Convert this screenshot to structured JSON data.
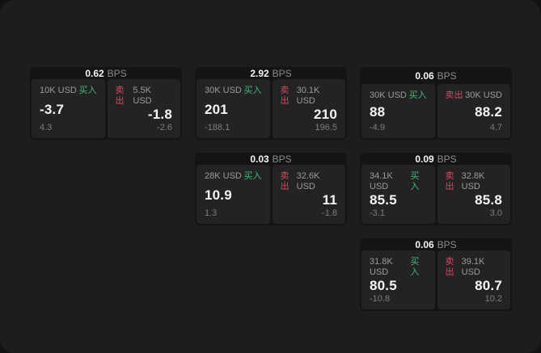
{
  "colors": {
    "page_bg": "#121214",
    "surface_bg": "#1d1d1f",
    "card_bg": "#141415",
    "panel_bg": "#232325",
    "buy_green": "#46b873",
    "sell_red": "#d24b5f"
  },
  "cards": [
    {
      "spread": "0.62",
      "unit": "BPS",
      "buy": {
        "amount": "10K USD",
        "label": "买入",
        "price": "-3.7",
        "delta": "4.3"
      },
      "sell": {
        "label": "卖出",
        "amount": "5.5K USD",
        "price": "-1.8",
        "delta": "-2.6"
      }
    },
    {
      "spread": "2.92",
      "unit": "BPS",
      "buy": {
        "amount": "30K USD",
        "label": "买入",
        "price": "201",
        "delta": "-188.1"
      },
      "sell": {
        "label": "卖出",
        "amount": "30.1K USD",
        "price": "210",
        "delta": "196.5"
      }
    },
    {
      "spread": "0.06",
      "unit": "BPS",
      "buy": {
        "amount": "30K USD",
        "label": "买入",
        "price": "88",
        "delta": "-4.9"
      },
      "sell": {
        "label": "卖出",
        "amount": "30K USD",
        "price": "88.2",
        "delta": "4.7"
      }
    },
    {
      "spread": "0.03",
      "unit": "BPS",
      "buy": {
        "amount": "28K USD",
        "label": "买入",
        "price": "10.9",
        "delta": "1.3"
      },
      "sell": {
        "label": "卖出",
        "amount": "32.6K USD",
        "price": "11",
        "delta": "-1.8"
      }
    },
    {
      "spread": "0.09",
      "unit": "BPS",
      "buy": {
        "amount": "34.1K USD",
        "label": "买入",
        "price": "85.5",
        "delta": "-3.1"
      },
      "sell": {
        "label": "卖出",
        "amount": "32.8K USD",
        "price": "85.8",
        "delta": "3.0"
      }
    },
    {
      "spread": "0.06",
      "unit": "BPS",
      "buy": {
        "amount": "31.8K USD",
        "label": "买入",
        "price": "80.5",
        "delta": "-10.8"
      },
      "sell": {
        "label": "卖出",
        "amount": "39.1K USD",
        "price": "80.7",
        "delta": "10.2"
      }
    }
  ]
}
